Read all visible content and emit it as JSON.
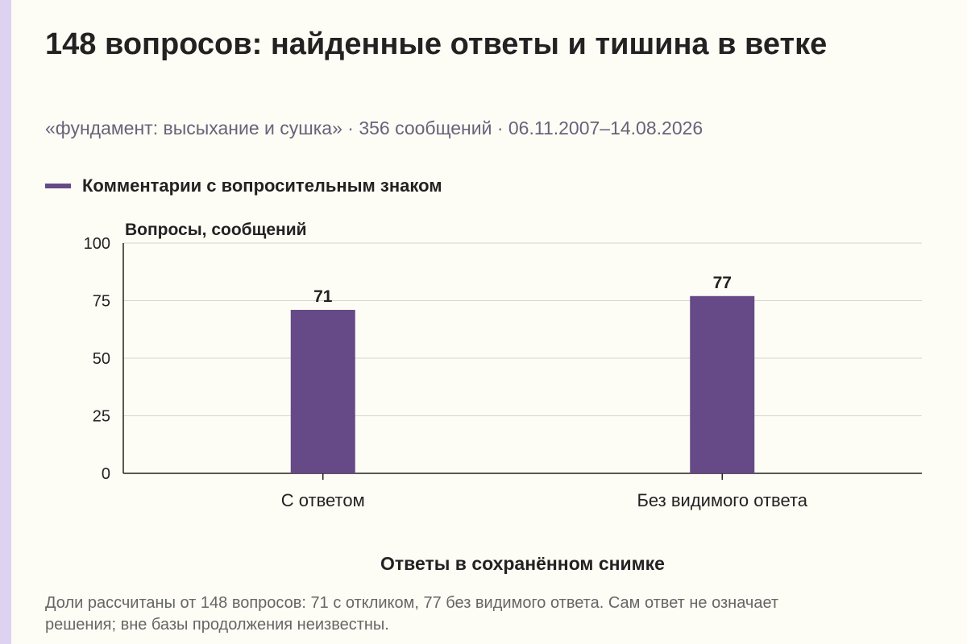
{
  "title": "148 вопросов: найденные ответы и тишина в ветке",
  "subtitle": "«фундамент: высыхание и сушка» · 356 сообщений · 06.11.2007–14.08.2026",
  "footnote": "Доли рассчитаны от 148 вопросов: 71 с откликом, 77 без видимого ответа. Сам ответ не означает решения; вне базы продолжения неизвестны.",
  "colors": {
    "accent_stripe": "#ddd2ef",
    "bar": "#654a87",
    "grid": "#d4d4d4"
  },
  "chart_data": {
    "type": "bar",
    "categories": [
      "С ответом",
      "Без видимого ответа"
    ],
    "series": [
      {
        "name": "Комментарии с вопросительным знаком",
        "values": [
          71,
          77
        ]
      }
    ],
    "ylabel": "Вопросы, сообщений",
    "xlabel": "Ответы в сохранённом снимке",
    "ylim": [
      0,
      100
    ],
    "yticks": [
      0,
      25,
      50,
      75,
      100
    ],
    "grid": true,
    "legend": "top-left",
    "data_labels": true
  }
}
